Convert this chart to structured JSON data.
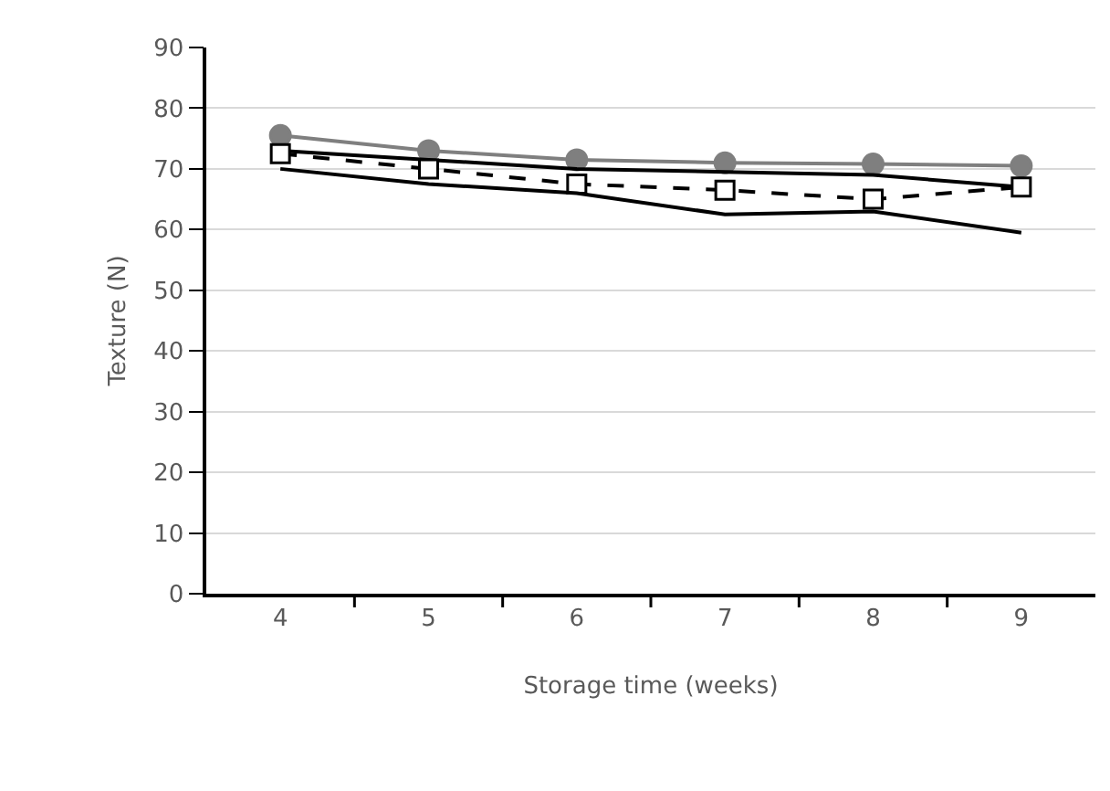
{
  "chart_data": {
    "type": "line",
    "xlabel": "Storage time (weeks)",
    "ylabel": "Texture (N)",
    "categories": [
      "4",
      "5",
      "6",
      "7",
      "8",
      "9"
    ],
    "ylim": [
      0,
      90
    ],
    "yticks": [
      0,
      10,
      20,
      30,
      40,
      50,
      60,
      70,
      80,
      90
    ],
    "grid": "y",
    "series": [
      {
        "color": "#7f7f7f",
        "values": [
          75.5,
          73,
          71.5,
          71,
          70.8,
          70.5
        ],
        "marker": "circle",
        "line_style": "solid"
      },
      {
        "color": "#000000",
        "values": [
          73,
          71.5,
          70,
          69.5,
          69,
          67
        ],
        "marker": "none",
        "line_style": "solid"
      },
      {
        "color": "#000000",
        "values": [
          72.5,
          70,
          67.5,
          66.5,
          65,
          67
        ],
        "marker": "square",
        "line_style": "dashed"
      },
      {
        "color": "#000000",
        "values": [
          70,
          67.5,
          66,
          62.5,
          63,
          59.5
        ],
        "marker": "none",
        "line_style": "solid"
      }
    ]
  }
}
